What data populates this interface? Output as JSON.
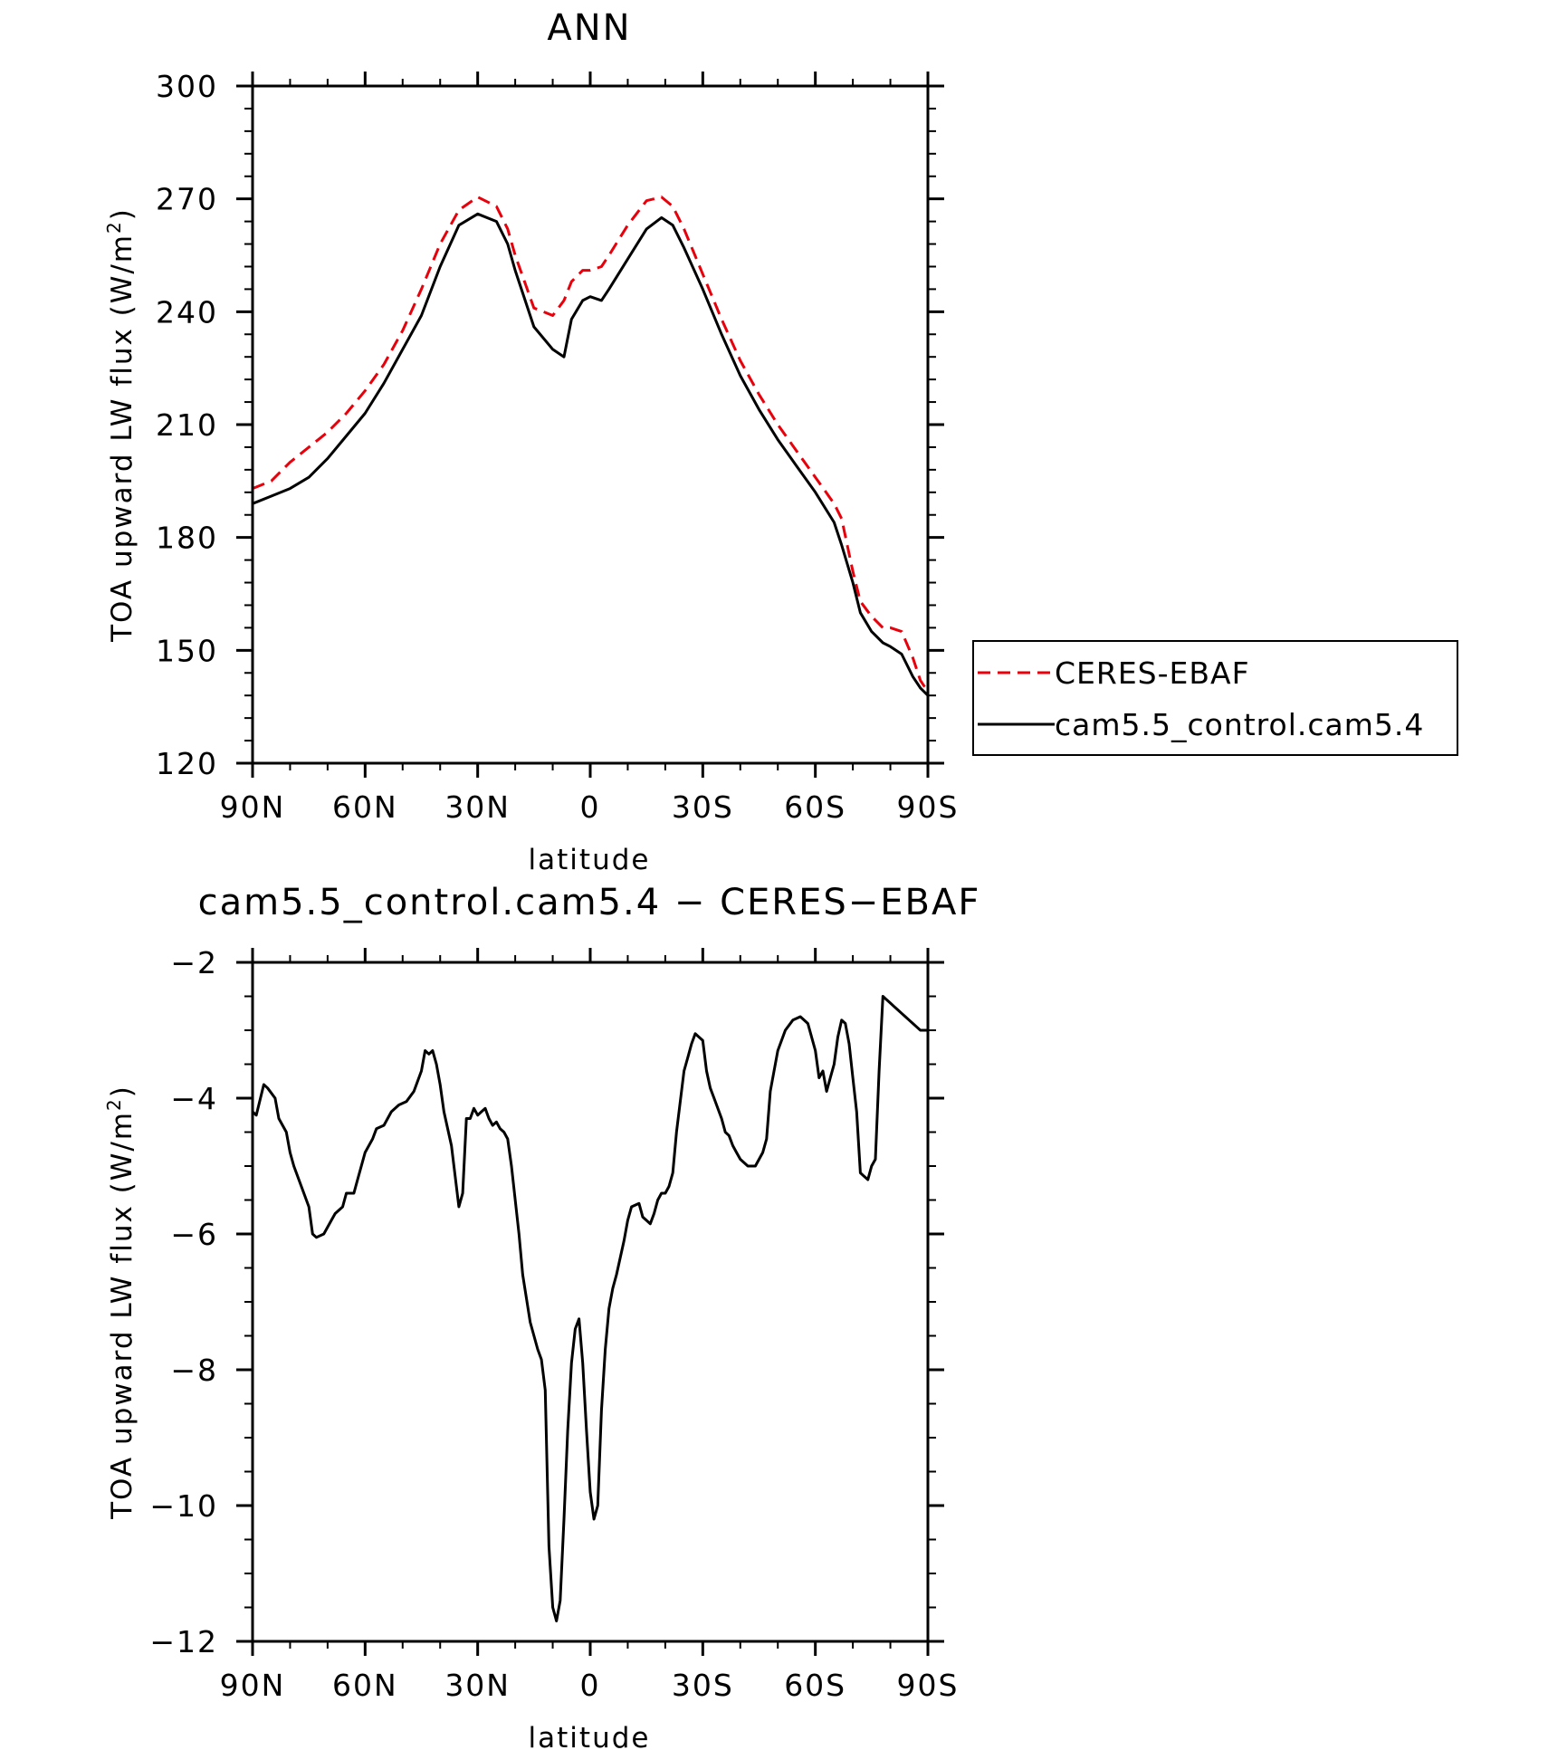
{
  "chart_data": [
    {
      "type": "line",
      "title": "ANN",
      "xlabel": "latitude",
      "ylabel_main": "TOA upward LW flux (W/m",
      "ylabel_sup": "2",
      "ylabel_close": ")",
      "xlim": [
        90,
        -90
      ],
      "ylim": [
        120,
        300
      ],
      "xticks": [
        90,
        60,
        30,
        0,
        -30,
        -60,
        -90
      ],
      "xtick_labels": [
        "90N",
        "60N",
        "30N",
        "0",
        "30S",
        "60S",
        "90S"
      ],
      "yticks": [
        120,
        150,
        180,
        210,
        240,
        270,
        300
      ],
      "ytick_labels": [
        "120",
        "150",
        "180",
        "210",
        "240",
        "270",
        "300"
      ],
      "legend_position": "right",
      "series": [
        {
          "name": "CERES-EBAF",
          "color": "#e8000b",
          "dash": "dashed",
          "x": [
            90,
            85,
            80,
            75,
            70,
            65,
            60,
            55,
            50,
            45,
            40,
            35,
            30,
            25,
            22,
            20,
            15,
            10,
            7,
            5,
            2,
            0,
            -3,
            -5,
            -10,
            -15,
            -19,
            -22,
            -25,
            -30,
            -35,
            -40,
            -45,
            -50,
            -55,
            -60,
            -65,
            -67,
            -70,
            -72,
            -75,
            -78,
            -80,
            -83,
            -86,
            -88,
            -90
          ],
          "y": [
            193,
            195,
            200,
            204,
            208,
            213,
            219,
            226,
            235,
            246,
            258,
            267,
            270.5,
            268,
            262,
            255,
            241,
            239,
            243,
            248,
            251,
            251,
            252,
            255,
            263,
            269.5,
            270.5,
            268,
            262,
            250,
            238,
            227,
            218,
            210,
            203,
            196,
            189,
            185,
            171,
            163,
            159,
            156,
            156,
            155,
            148,
            142,
            139
          ]
        },
        {
          "name": "cam5.5_control.cam5.4",
          "color": "#000000",
          "dash": "solid",
          "x": [
            90,
            85,
            80,
            75,
            70,
            65,
            60,
            55,
            50,
            45,
            40,
            35,
            30,
            25,
            22,
            20,
            15,
            10,
            7,
            5,
            2,
            0,
            -3,
            -5,
            -10,
            -15,
            -19,
            -22,
            -25,
            -30,
            -35,
            -40,
            -45,
            -50,
            -55,
            -60,
            -65,
            -67,
            -70,
            -72,
            -75,
            -78,
            -80,
            -83,
            -86,
            -88,
            -90
          ],
          "y": [
            189,
            191,
            193,
            196,
            201,
            207,
            213,
            221,
            230,
            239,
            252,
            263,
            266,
            264,
            258,
            251,
            236,
            230,
            228,
            238,
            243,
            244,
            243,
            246,
            254,
            262,
            265,
            263,
            257,
            246,
            234,
            223,
            214,
            206,
            199,
            192,
            184,
            178,
            168,
            160,
            155,
            152,
            151,
            149,
            143,
            140,
            138
          ]
        }
      ]
    },
    {
      "type": "line",
      "title": "cam5.5_control.cam5.4 − CERES−EBAF",
      "xlabel": "latitude",
      "ylabel_main": "TOA upward LW flux (W/m",
      "ylabel_sup": "2",
      "ylabel_close": ")",
      "xlim": [
        90,
        -90
      ],
      "ylim": [
        -12,
        -2
      ],
      "xticks": [
        90,
        60,
        30,
        0,
        -30,
        -60,
        -90
      ],
      "xtick_labels": [
        "90N",
        "60N",
        "30N",
        "0",
        "30S",
        "60S",
        "90S"
      ],
      "yticks": [
        -12,
        -10,
        -8,
        -6,
        -4,
        -2
      ],
      "ytick_labels": [
        "−12",
        "−10",
        "−8",
        "−6",
        "−4",
        "−2"
      ],
      "series": [
        {
          "name": "",
          "color": "#000000",
          "dash": "solid",
          "x": [
            90,
            89,
            87,
            86,
            84,
            83,
            81,
            80,
            79,
            77,
            75,
            74,
            73,
            71,
            69,
            68,
            66,
            65,
            63,
            62,
            60,
            58,
            57,
            55,
            53,
            51,
            49,
            47,
            45,
            44,
            43,
            42,
            41,
            40,
            39,
            37,
            35,
            34,
            33,
            32,
            31,
            30,
            29,
            28,
            27,
            26,
            25,
            24,
            23,
            22,
            21,
            19,
            18,
            16,
            14,
            13,
            12,
            11,
            10,
            9,
            8,
            7,
            6,
            5,
            4,
            3,
            2,
            1,
            0,
            -1,
            -2,
            -3,
            -4,
            -5,
            -6,
            -7,
            -9,
            -10,
            -11,
            -13,
            -14,
            -16,
            -17,
            -18,
            -19,
            -20,
            -21,
            -22,
            -23,
            -25,
            -26,
            -27,
            -28,
            -30,
            -31,
            -32,
            -33,
            -35,
            -36,
            -37,
            -38,
            -39,
            -40,
            -42,
            -44,
            -46,
            -47,
            -48,
            -50,
            -52,
            -54,
            -56,
            -58,
            -60,
            -61,
            -62,
            -63,
            -64,
            -65,
            -66,
            -67,
            -68,
            -69,
            -70,
            -71,
            -72,
            -73,
            -74,
            -75,
            -76,
            -77,
            -78,
            -79,
            -80,
            -81,
            -82,
            -83,
            -84,
            -85,
            -86,
            -87,
            -88,
            -89,
            -90
          ],
          "y": [
            -4.2,
            -4.25,
            -3.8,
            -3.85,
            -4.0,
            -4.3,
            -4.5,
            -4.8,
            -5.0,
            -5.3,
            -5.6,
            -6.0,
            -6.05,
            -6.0,
            -5.8,
            -5.7,
            -5.6,
            -5.4,
            -5.4,
            -5.2,
            -4.8,
            -4.6,
            -4.45,
            -4.4,
            -4.2,
            -4.1,
            -4.05,
            -3.9,
            -3.6,
            -3.3,
            -3.35,
            -3.3,
            -3.5,
            -3.8,
            -4.2,
            -4.7,
            -5.6,
            -5.4,
            -4.3,
            -4.3,
            -4.15,
            -4.25,
            -4.2,
            -4.15,
            -4.3,
            -4.4,
            -4.35,
            -4.45,
            -4.5,
            -4.6,
            -5.0,
            -6.0,
            -6.6,
            -7.3,
            -7.7,
            -7.85,
            -8.3,
            -10.6,
            -11.5,
            -11.7,
            -11.4,
            -10.2,
            -8.9,
            -7.9,
            -7.4,
            -7.25,
            -7.9,
            -8.9,
            -9.8,
            -10.2,
            -10.0,
            -8.6,
            -7.7,
            -7.1,
            -6.8,
            -6.6,
            -6.1,
            -5.8,
            -5.6,
            -5.55,
            -5.75,
            -5.85,
            -5.7,
            -5.5,
            -5.4,
            -5.4,
            -5.3,
            -5.1,
            -4.5,
            -3.6,
            -3.4,
            -3.2,
            -3.05,
            -3.15,
            -3.6,
            -3.85,
            -4.0,
            -4.3,
            -4.5,
            -4.55,
            -4.7,
            -4.8,
            -4.9,
            -5.0,
            -5.0,
            -4.8,
            -4.6,
            -3.9,
            -3.3,
            -3.0,
            -2.85,
            -2.8,
            -2.9,
            -3.3,
            -3.7,
            -3.6,
            -3.9,
            -3.7,
            -3.5,
            -3.1,
            -2.85,
            -2.9,
            -3.2,
            -3.7,
            -4.2,
            -5.1,
            -5.15,
            -5.2,
            -5.0,
            -4.9,
            -3.6,
            -2.5,
            -2.55,
            -2.6,
            -2.65,
            -2.7,
            -2.75,
            -2.8,
            -2.85,
            -2.9,
            -2.95,
            -3.0,
            -3.0,
            -3.0
          ]
        }
      ]
    }
  ]
}
